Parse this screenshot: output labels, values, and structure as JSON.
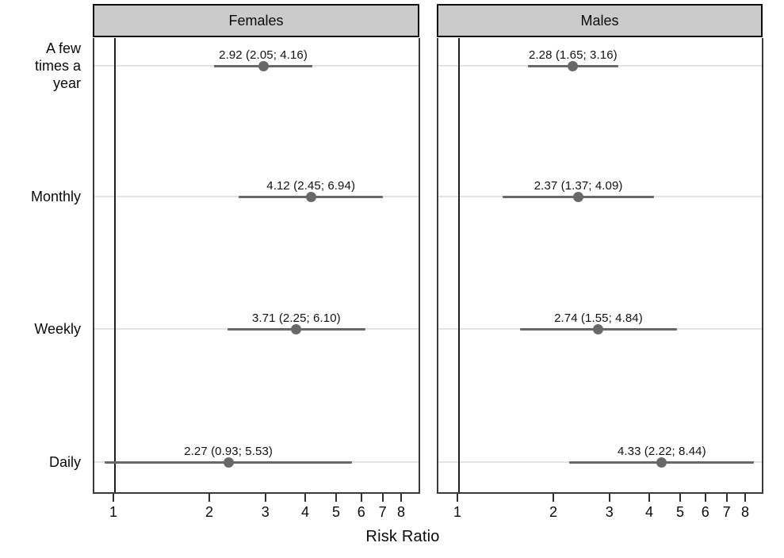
{
  "chart_data": {
    "type": "forest",
    "title": "",
    "xlabel": "Risk Ratio",
    "x_scale": "log",
    "x_ticks": [
      1,
      2,
      3,
      4,
      5,
      6,
      7,
      8
    ],
    "x_range": [
      0.86,
      9.2
    ],
    "reference_line": 1,
    "grid": "horizontal",
    "categories": [
      "A few\ntimes a\nyear",
      "Monthly",
      "Weekly",
      "Daily"
    ],
    "panels": [
      {
        "title": "Females",
        "points": [
          {
            "category": "A few times a year",
            "estimate": 2.92,
            "ci_low": 2.05,
            "ci_high": 4.16,
            "label": "2.92 (2.05; 4.16)"
          },
          {
            "category": "Monthly",
            "estimate": 4.12,
            "ci_low": 2.45,
            "ci_high": 6.94,
            "label": "4.12 (2.45; 6.94)"
          },
          {
            "category": "Weekly",
            "estimate": 3.71,
            "ci_low": 2.25,
            "ci_high": 6.1,
            "label": "3.71 (2.25; 6.10)"
          },
          {
            "category": "Daily",
            "estimate": 2.27,
            "ci_low": 0.93,
            "ci_high": 5.53,
            "label": "2.27 (0.93; 5.53)"
          }
        ]
      },
      {
        "title": "Males",
        "points": [
          {
            "category": "A few times a year",
            "estimate": 2.28,
            "ci_low": 1.65,
            "ci_high": 3.16,
            "label": "2.28 (1.65; 3.16)"
          },
          {
            "category": "Monthly",
            "estimate": 2.37,
            "ci_low": 1.37,
            "ci_high": 4.09,
            "label": "2.37 (1.37; 4.09)"
          },
          {
            "category": "Weekly",
            "estimate": 2.74,
            "ci_low": 1.55,
            "ci_high": 4.84,
            "label": "2.74 (1.55; 4.84)"
          },
          {
            "category": "Daily",
            "estimate": 4.33,
            "ci_low": 2.22,
            "ci_high": 8.44,
            "label": "4.33 (2.22; 8.44)"
          }
        ]
      }
    ],
    "colors": {
      "header_background": "#cbcbcb",
      "header_border": "#0d0d0d",
      "plot_frame": "#3a3a3a",
      "gridline": "#e3e3e3",
      "marker_and_ci": "#686868",
      "reference_line": "#1f1f1f",
      "text": "#0a0a0a",
      "background": "#ffffff"
    }
  }
}
